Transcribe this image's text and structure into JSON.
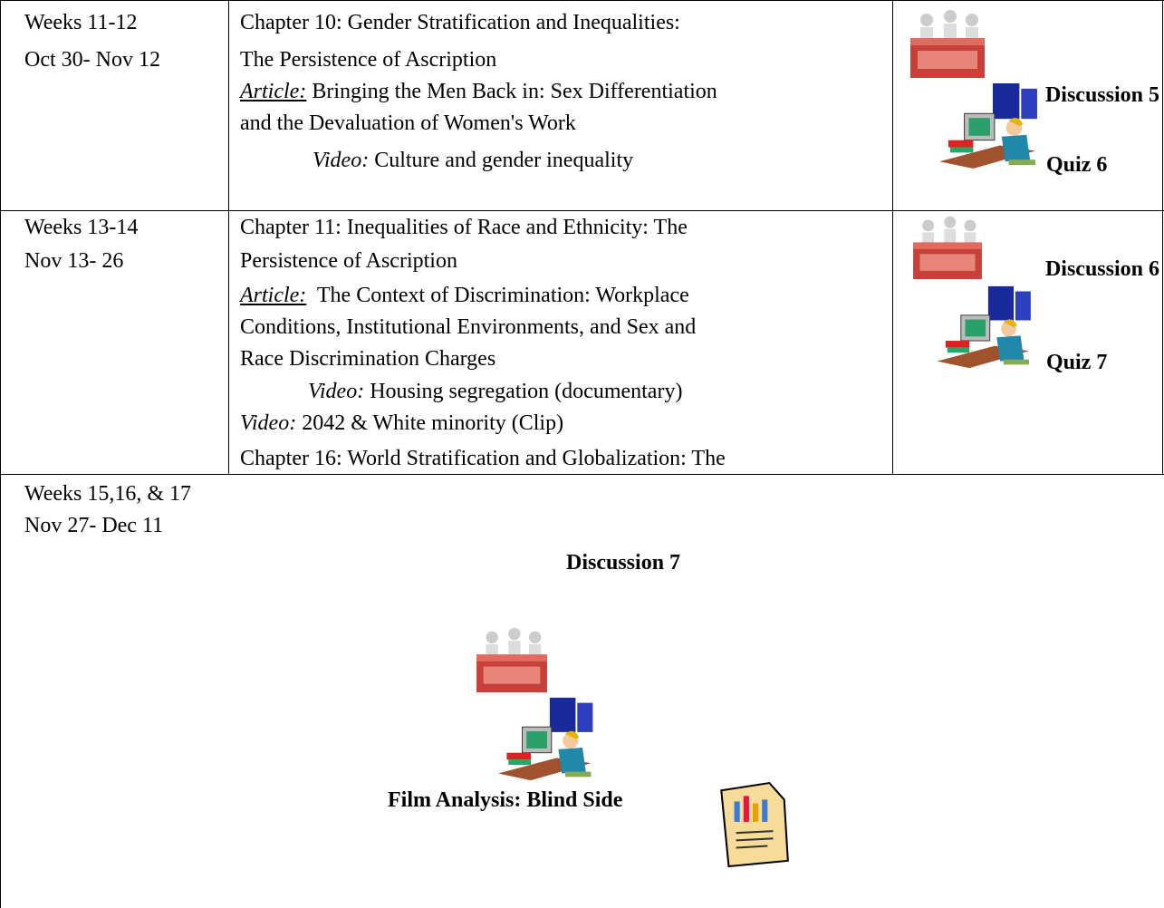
{
  "rows": [
    {
      "weeks": "Weeks 11-12",
      "dates": "Oct 30- Nov 12",
      "lines": [
        {
          "text": "Chapter 10: Gender Stratification and Inequalities:"
        },
        {
          "text": "The Persistence of Ascription"
        },
        {
          "label": "Article:",
          "text": "Bringing the Men Back in: Sex Differentiation"
        },
        {
          "text": "and the Devaluation of Women's Work"
        },
        {
          "label": "Video:",
          "text": "Culture and gender inequality"
        }
      ],
      "discussion": "Discussion 5",
      "quiz": "Quiz 6"
    },
    {
      "weeks": "Weeks 13-14",
      "dates": "Nov 13- 26",
      "lines": [
        {
          "text": "Chapter 11: Inequalities of Race and Ethnicity: The"
        },
        {
          "text": "Persistence of Ascription"
        },
        {
          "label": "Article:",
          "text": "The Context of Discrimination: Workplace"
        },
        {
          "text": "Conditions, Institutional Environments, and Sex and"
        },
        {
          "text": "Race Discrimination Charges"
        },
        {
          "label": "Video:",
          "text": "Housing segregation (documentary)"
        },
        {
          "label": "Video:",
          "text": "2042 & White minority (Clip)"
        },
        {
          "text": "Chapter 16: World Stratification and Globalization: The"
        }
      ],
      "discussion": "Discussion 6",
      "quiz": "Quiz 7"
    },
    {
      "weeks": "Weeks 15,16, & 17",
      "dates": "Nov 27- Dec 11",
      "discussion": "Discussion 7",
      "film": "Film Analysis: Blind Side"
    }
  ]
}
